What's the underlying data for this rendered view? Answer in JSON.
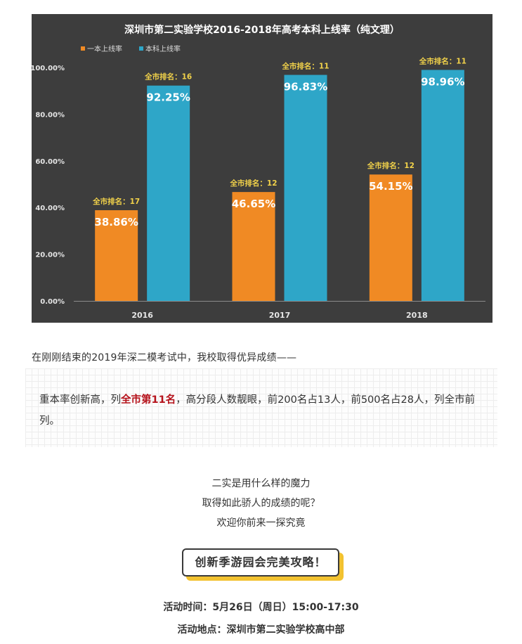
{
  "chart_data": {
    "type": "bar",
    "title": "深圳市第二实验学校2016-2018年高考本科上线率（纯文理）",
    "categories": [
      "2016",
      "2017",
      "2018"
    ],
    "series": [
      {
        "name": "一本上线率",
        "color": "#f08a24",
        "values": [
          38.86,
          46.65,
          54.15
        ],
        "value_labels": [
          "38.86%",
          "46.65%",
          "54.15%"
        ],
        "rank_labels": [
          "全市排名：17",
          "全市排名：12",
          "全市排名：12"
        ]
      },
      {
        "name": "本科上线率",
        "color": "#2ea6c8",
        "values": [
          92.25,
          96.83,
          98.96
        ],
        "value_labels": [
          "92.25%",
          "96.83%",
          "98.96%"
        ],
        "rank_labels": [
          "全市排名：16",
          "全市排名：11",
          "全市排名：11"
        ]
      }
    ],
    "ylim": [
      0,
      100
    ],
    "yticks": [
      0,
      20,
      40,
      60,
      80,
      100
    ],
    "ytick_labels": [
      "0.00%",
      "20.00%",
      "40.00%",
      "60.00%",
      "80.00%",
      "100.00%"
    ],
    "legend_position": "top-left",
    "grid": false,
    "background": "#3d3d3d"
  },
  "article": {
    "intro": "在刚刚结束的2019年深二模考试中，我校取得优异成绩——",
    "highlight_pre": "重本率创新高，列",
    "highlight_red": "全市第11名",
    "highlight_post": "，高分段人数靓眼，前200名占13人，前500名占28人，列全市前列。",
    "center_lines": [
      "二实是用什么样的魔力",
      "取得如此骄人的成绩的呢？",
      "欢迎你前来一探究竟"
    ],
    "badge": "创新季游园会完美攻略！",
    "time": "活动时间：5月26日（周日）15:00-17:30",
    "location": "活动地点：深圳市第二实验学校高中部"
  }
}
